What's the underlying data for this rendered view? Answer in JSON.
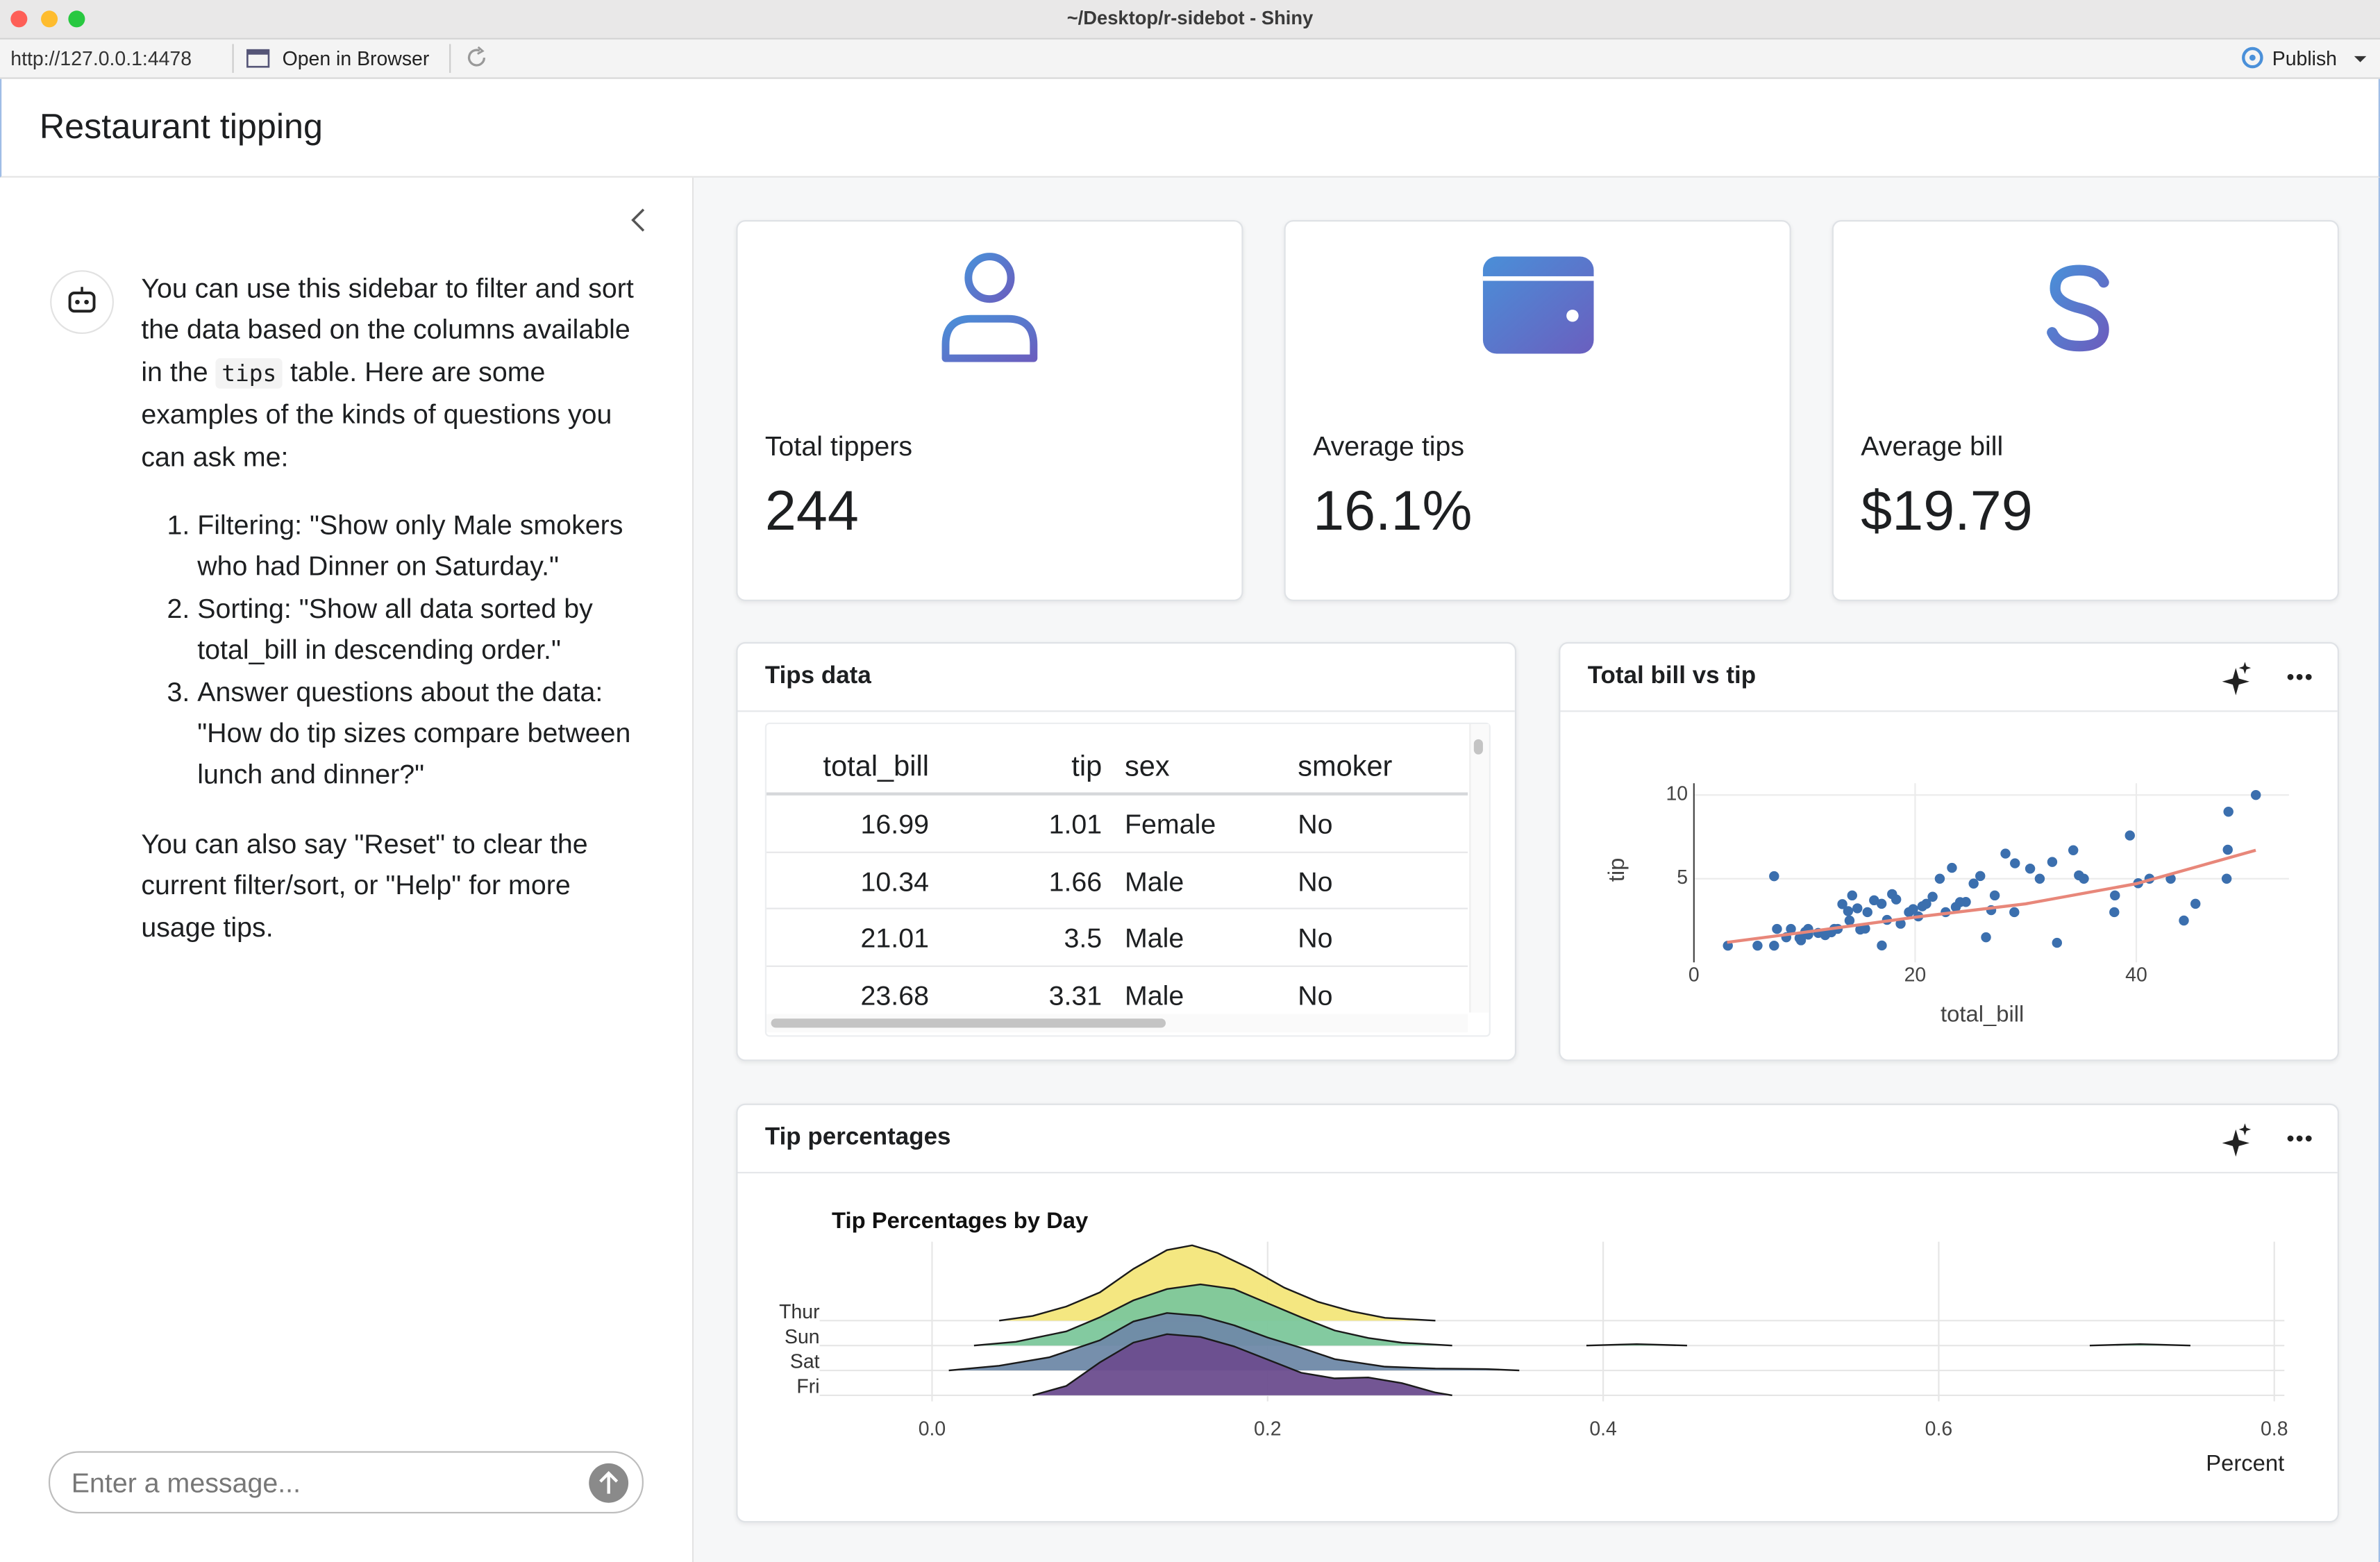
{
  "window": {
    "title": "~/Desktop/r-sidebot - Shiny",
    "url": "http://127.0.0.1:4478",
    "open_browser": "Open in Browser",
    "publish": "Publish"
  },
  "app": {
    "title": "Restaurant tipping"
  },
  "sidebar": {
    "intro_before": "You can use this sidebar to filter and sort the data based on the columns available in the ",
    "intro_code": "tips",
    "intro_after": " table. Here are some examples of the kinds of questions you can ask me:",
    "examples": [
      "Filtering: \"Show only Male smokers who had Dinner on Saturday.\"",
      "Sorting: \"Show all data sorted by total_bill in descending order.\"",
      "Answer questions about the data: \"How do tip sizes compare between lunch and dinner?\""
    ],
    "outro": "You can also say \"Reset\" to clear the current filter/sort, or \"Help\" for more usage tips.",
    "input_placeholder": "Enter a message..."
  },
  "value_boxes": [
    {
      "label": "Total tippers",
      "value": "244"
    },
    {
      "label": "Average tips",
      "value": "16.1%"
    },
    {
      "label": "Average bill",
      "value": "$19.79"
    }
  ],
  "table": {
    "title": "Tips data",
    "columns": [
      "total_bill",
      "tip",
      "sex",
      "smoker"
    ],
    "rows": [
      [
        16.99,
        1.01,
        "Female",
        "No"
      ],
      [
        10.34,
        1.66,
        "Male",
        "No"
      ],
      [
        21.01,
        3.5,
        "Male",
        "No"
      ],
      [
        23.68,
        3.31,
        "Male",
        "No"
      ]
    ]
  },
  "cards": {
    "scatter_title": "Total bill vs tip",
    "ridge_title": "Tip percentages"
  },
  "chart_data": [
    {
      "type": "scatter",
      "xlabel": "total_bill",
      "ylabel": "tip",
      "xlim": [
        0,
        53.8
      ],
      "ylim": [
        0,
        10.7
      ],
      "xticks": [
        0,
        20,
        40
      ],
      "yticks": [
        5,
        10
      ],
      "color": "#3b6fae",
      "x": [
        3.07,
        5.75,
        7.25,
        7.25,
        7.51,
        8.35,
        8.77,
        9.55,
        9.68,
        10.07,
        10.34,
        10.33,
        11.24,
        11.87,
        12.43,
        12.69,
        13,
        13.42,
        13.94,
        14.07,
        14.31,
        14.78,
        15.04,
        15.48,
        15.69,
        16.29,
        16.97,
        16.99,
        17.46,
        17.92,
        18.29,
        18.69,
        19.44,
        19.82,
        20.29,
        20.65,
        21.01,
        21.58,
        22.23,
        22.76,
        23.33,
        23.68,
        24.06,
        24.59,
        25.29,
        25.89,
        26.41,
        26.88,
        27.2,
        28.17,
        28.97,
        29.03,
        30.4,
        31.27,
        32.4,
        32.83,
        34.3,
        34.81,
        35.26,
        38.01,
        38.07,
        39.42,
        40.17,
        41.19,
        43.11,
        44.3,
        45.35,
        48.17,
        48.27,
        48.33,
        50.81
      ],
      "y": [
        1,
        1,
        5.15,
        1,
        2,
        1.5,
        2,
        1.45,
        1.32,
        1.83,
        1.66,
        2,
        1.76,
        1.63,
        1.8,
        2,
        2,
        3.48,
        3.06,
        2.5,
        4,
        3.23,
        1.96,
        2.02,
        3,
        3.71,
        3.5,
        1.01,
        2.54,
        4.08,
        3.76,
        2.31,
        3,
        3.18,
        2.75,
        3.35,
        3.5,
        3.92,
        5,
        3,
        5.65,
        3.31,
        3.6,
        3.61,
        4.71,
        5.16,
        1.5,
        3.12,
        4,
        6.5,
        3,
        5.92,
        5.6,
        5,
        6,
        1.17,
        6.7,
        5.2,
        5,
        3,
        4,
        7.58,
        4.73,
        5,
        5,
        2.5,
        3.5,
        5,
        6.73,
        9,
        10
      ],
      "trend": {
        "color": "#e8877a",
        "x": [
          3,
          10,
          20,
          30,
          40,
          50.8
        ],
        "y": [
          1.2,
          1.8,
          2.7,
          3.5,
          4.7,
          6.7
        ]
      }
    },
    {
      "type": "ridgeline",
      "title": "Tip Percentages by Day",
      "xlabel": "Percent",
      "xlim": [
        -0.067,
        0.806
      ],
      "xticks": [
        {
          "value": 0,
          "label": "0.0"
        },
        0.2,
        0.4,
        0.6,
        0.8
      ],
      "series": [
        {
          "name": "Thur",
          "color": "#f3e67a",
          "x": [
            0.04,
            0.06,
            0.08,
            0.1,
            0.12,
            0.14,
            0.155,
            0.17,
            0.19,
            0.21,
            0.23,
            0.25,
            0.27,
            0.3
          ],
          "values": [
            0,
            0.5,
            1.5,
            3,
            5.5,
            7.5,
            8,
            7.2,
            5.5,
            3.5,
            2,
            1,
            0.3,
            0
          ]
        },
        {
          "name": "Sun",
          "color": "#7cc79b",
          "x": [
            0.025,
            0.05,
            0.08,
            0.1,
            0.12,
            0.14,
            0.16,
            0.18,
            0.2,
            0.22,
            0.24,
            0.26,
            0.28,
            0.31,
            0.35,
            0.39,
            0.41,
            0.42,
            0.43,
            0.45,
            0.57,
            0.69,
            0.71,
            0.72,
            0.73,
            0.75
          ],
          "values": [
            0,
            0.4,
            1.5,
            3,
            4.8,
            6,
            6.5,
            6,
            4.5,
            3,
            1.6,
            0.8,
            0.3,
            0,
            null,
            0,
            0.1,
            0.15,
            0.1,
            0,
            null,
            0,
            0.1,
            0.15,
            0.1,
            0
          ]
        },
        {
          "name": "Sat",
          "color": "#6f89a8",
          "x": [
            0.01,
            0.04,
            0.07,
            0.1,
            0.12,
            0.14,
            0.16,
            0.18,
            0.2,
            0.22,
            0.24,
            0.27,
            0.3,
            0.33,
            0.35
          ],
          "values": [
            0,
            0.5,
            1.4,
            3.2,
            5.2,
            6.1,
            5.8,
            4.8,
            3.5,
            2.4,
            1.2,
            0.4,
            0.2,
            0.15,
            0
          ]
        },
        {
          "name": "Fri",
          "color": "#6b4d8e",
          "x": [
            0.06,
            0.08,
            0.1,
            0.12,
            0.14,
            0.16,
            0.18,
            0.2,
            0.22,
            0.24,
            0.26,
            0.28,
            0.3,
            0.31
          ],
          "values": [
            0,
            1,
            3.5,
            5.6,
            6.5,
            6.2,
            5.2,
            3.8,
            2.4,
            1.8,
            1.9,
            1.3,
            0.3,
            0
          ]
        }
      ]
    }
  ]
}
